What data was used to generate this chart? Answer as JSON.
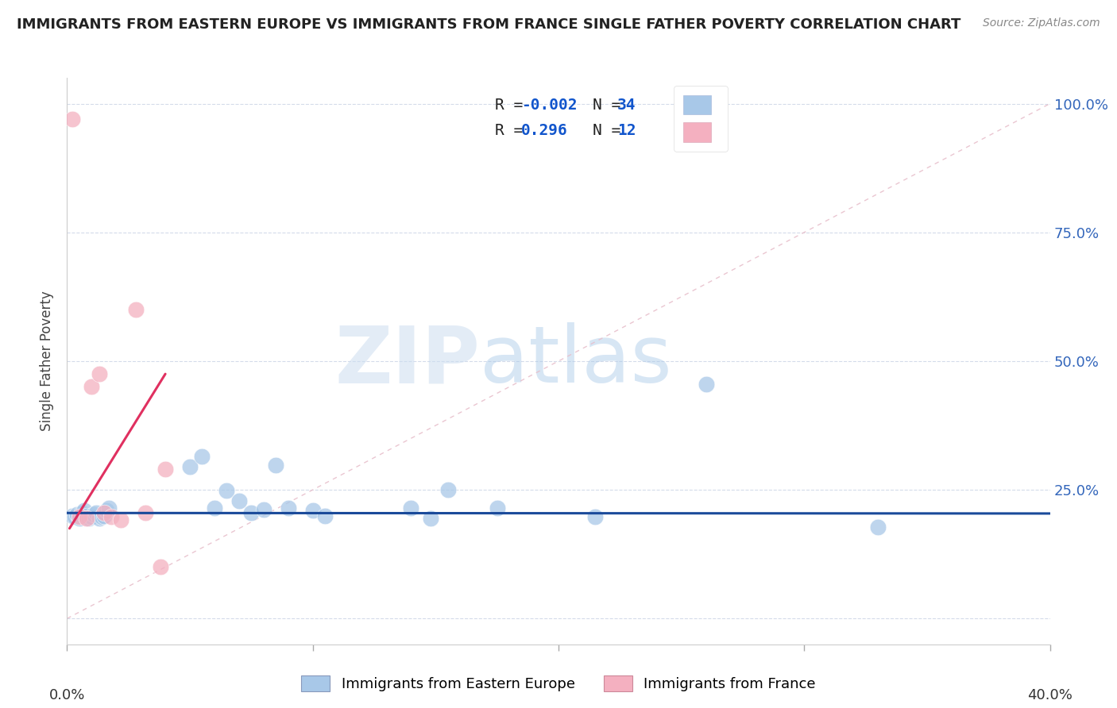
{
  "title": "IMMIGRANTS FROM EASTERN EUROPE VS IMMIGRANTS FROM FRANCE SINGLE FATHER POVERTY CORRELATION CHART",
  "source": "Source: ZipAtlas.com",
  "ylabel": "Single Father Poverty",
  "yticks": [
    0.0,
    0.25,
    0.5,
    0.75,
    1.0
  ],
  "ytick_labels": [
    "",
    "25.0%",
    "50.0%",
    "75.0%",
    "100.0%"
  ],
  "xmin": 0.0,
  "xmax": 0.4,
  "ymin": -0.05,
  "ymax": 1.05,
  "blue_color": "#a8c8e8",
  "pink_color": "#f4b0c0",
  "blue_line_color": "#1a4a9a",
  "pink_line_color": "#e03060",
  "diag_line_color": "#e8c0cc",
  "watermark_zip": "ZIP",
  "watermark_atlas": "atlas",
  "blue_dots_x": [
    0.002,
    0.003,
    0.004,
    0.005,
    0.006,
    0.007,
    0.008,
    0.009,
    0.01,
    0.011,
    0.012,
    0.013,
    0.014,
    0.015,
    0.016,
    0.017,
    0.05,
    0.055,
    0.06,
    0.065,
    0.07,
    0.075,
    0.08,
    0.085,
    0.09,
    0.1,
    0.105,
    0.14,
    0.148,
    0.155,
    0.175,
    0.215,
    0.26,
    0.33
  ],
  "blue_dots_y": [
    0.2,
    0.198,
    0.202,
    0.195,
    0.205,
    0.21,
    0.2,
    0.195,
    0.198,
    0.202,
    0.205,
    0.195,
    0.198,
    0.2,
    0.21,
    0.215,
    0.295,
    0.315,
    0.215,
    0.248,
    0.228,
    0.205,
    0.212,
    0.298,
    0.215,
    0.21,
    0.2,
    0.215,
    0.195,
    0.25,
    0.215,
    0.198,
    0.455,
    0.178
  ],
  "pink_dots_x": [
    0.002,
    0.005,
    0.008,
    0.01,
    0.013,
    0.015,
    0.018,
    0.022,
    0.028,
    0.032,
    0.038,
    0.04
  ],
  "pink_dots_y": [
    0.97,
    0.198,
    0.195,
    0.45,
    0.475,
    0.205,
    0.198,
    0.192,
    0.6,
    0.205,
    0.1,
    0.29
  ],
  "blue_trend_x": [
    0.0,
    0.4
  ],
  "blue_trend_y": [
    0.205,
    0.204
  ],
  "pink_trend_x": [
    0.001,
    0.04
  ],
  "pink_trend_y": [
    0.175,
    0.475
  ],
  "diag_line_x": [
    0.0,
    0.4
  ],
  "diag_line_y": [
    0.0,
    1.0
  ],
  "xtick_positions": [
    0.0,
    0.1,
    0.2,
    0.3,
    0.4
  ],
  "legend_r_blue": "R = -0.002",
  "legend_n_blue": "N = 34",
  "legend_r_pink": "R =  0.296",
  "legend_n_pink": "N = 12"
}
